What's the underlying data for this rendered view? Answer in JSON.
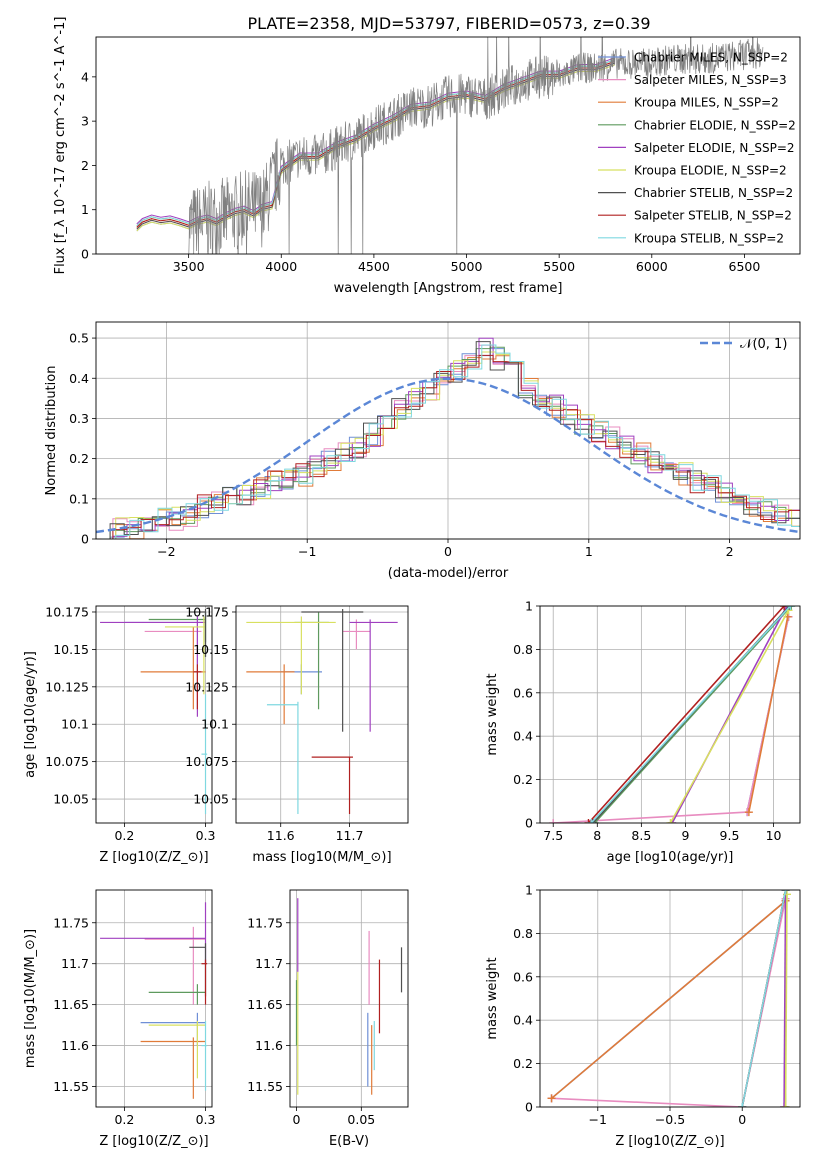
{
  "figure": {
    "title": "PLATE=2358, MJD=53797, FIBERID=0573, z=0.39"
  },
  "colors": {
    "Chabrier MILES": "#6f8fd6",
    "Salpeter MILES": "#e88cc0",
    "Kroupa MILES": "#e07b39",
    "Chabrier ELODIE": "#5e9a5e",
    "Salpeter ELODIE": "#a040c0",
    "Kroupa ELODIE": "#d8e060",
    "Chabrier STELIB": "#505050",
    "Salpeter STELIB": "#b02020",
    "Kroupa STELIB": "#7fd8e0"
  },
  "chart_data": [
    {
      "id": "spectrum",
      "type": "line",
      "xlabel": "wavelength [Angstrom, rest frame]",
      "ylabel": "Flux [f_λ 10^-17 erg cm^-2 s^-1 A^-1]",
      "xlim": [
        3000,
        6800
      ],
      "ylim": [
        0,
        4.9
      ],
      "xticks": [
        3500,
        4000,
        4500,
        5000,
        5500,
        6000,
        6500
      ],
      "yticks": [
        0,
        1,
        2,
        3,
        4
      ],
      "legend_position": "top-right",
      "legend": [
        "Chabrier MILES, N_SSP=2",
        "Salpeter MILES, N_SSP=3",
        "Kroupa MILES, N_SSP=2",
        "Chabrier ELODIE, N_SSP=2",
        "Salpeter ELODIE, N_SSP=2",
        "Kroupa ELODIE, N_SSP=2",
        "Chabrier STELIB, N_SSP=2",
        "Salpeter STELIB, N_SSP=2",
        "Kroupa STELIB, N_SSP=2"
      ],
      "data_series": {
        "name": "data",
        "color": "#808080",
        "x": [
          3500,
          3600,
          3700,
          3800,
          3900,
          4000,
          4100,
          4200,
          4300,
          4400,
          4500,
          4600,
          4700,
          4800,
          4900,
          5000,
          5100,
          5200,
          5300,
          5400,
          5500,
          5600,
          5700,
          5800,
          5900,
          6000,
          6100,
          6200,
          6300,
          6400,
          6500,
          6600
        ],
        "y": [
          0.65,
          0.75,
          0.85,
          1.0,
          1.05,
          2.0,
          2.2,
          2.2,
          2.4,
          2.6,
          2.85,
          3.05,
          3.3,
          3.35,
          3.55,
          3.6,
          3.5,
          3.7,
          3.9,
          4.0,
          4.0,
          4.2,
          4.2,
          4.3,
          4.3,
          4.3,
          4.4,
          4.4,
          4.4,
          4.45,
          4.5,
          4.55
        ]
      },
      "model_series": {
        "x": [
          3220,
          3250,
          3300,
          3350,
          3400,
          3450,
          3500,
          3550,
          3600,
          3650,
          3700,
          3750,
          3800,
          3850,
          3900,
          3950,
          4000,
          4050,
          4100,
          4200,
          4300,
          4400,
          4500,
          4600,
          4700,
          4800,
          4900,
          5000,
          5100,
          5200,
          5300,
          5400,
          5500,
          5600,
          5700,
          5800
        ],
        "y": [
          0.6,
          0.72,
          0.8,
          0.75,
          0.78,
          0.72,
          0.65,
          0.75,
          0.8,
          0.72,
          0.85,
          0.95,
          1.0,
          0.9,
          1.05,
          1.1,
          1.9,
          2.05,
          2.2,
          2.2,
          2.45,
          2.6,
          2.85,
          3.05,
          3.3,
          3.35,
          3.55,
          3.6,
          3.5,
          3.75,
          3.9,
          4.05,
          4.05,
          4.2,
          4.2,
          4.35
        ]
      }
    },
    {
      "id": "residuals",
      "type": "line",
      "xlabel": "(data-model)/error",
      "ylabel": "Normed distribution",
      "xlim": [
        -2.5,
        2.5
      ],
      "ylim": [
        0,
        0.54
      ],
      "xticks": [
        -2,
        -1,
        0,
        1,
        2
      ],
      "yticks": [
        0.0,
        0.1,
        0.2,
        0.3,
        0.4,
        0.5
      ],
      "legend": [
        "𝒩(0, 1)"
      ],
      "legend_position": "top-right",
      "gaussian": {
        "mean": 0,
        "sigma": 1,
        "color": "#5b87d6"
      },
      "hist_x": [
        -2.5,
        -2.4,
        -2.3,
        -2.2,
        -2.1,
        -2.0,
        -1.9,
        -1.8,
        -1.7,
        -1.6,
        -1.5,
        -1.4,
        -1.3,
        -1.2,
        -1.1,
        -1.0,
        -0.9,
        -0.8,
        -0.7,
        -0.6,
        -0.5,
        -0.4,
        -0.3,
        -0.2,
        -0.1,
        0.0,
        0.1,
        0.2,
        0.3,
        0.4,
        0.5,
        0.6,
        0.7,
        0.8,
        0.9,
        1.0,
        1.1,
        1.2,
        1.3,
        1.4,
        1.5,
        1.6,
        1.7,
        1.8,
        1.9,
        2.0,
        2.1,
        2.2,
        2.3,
        2.4
      ],
      "hist_y": [
        0.02,
        0.03,
        0.03,
        0.04,
        0.05,
        0.05,
        0.06,
        0.08,
        0.09,
        0.1,
        0.11,
        0.13,
        0.14,
        0.15,
        0.16,
        0.18,
        0.2,
        0.21,
        0.23,
        0.26,
        0.28,
        0.32,
        0.35,
        0.37,
        0.4,
        0.42,
        0.44,
        0.47,
        0.45,
        0.42,
        0.38,
        0.35,
        0.33,
        0.31,
        0.29,
        0.27,
        0.25,
        0.23,
        0.21,
        0.19,
        0.18,
        0.16,
        0.14,
        0.13,
        0.11,
        0.1,
        0.08,
        0.07,
        0.06,
        0.05
      ]
    },
    {
      "id": "age-vs-Z",
      "type": "scatter",
      "xlabel": "Z [log10(Z/Z_⊙)]",
      "ylabel": "age  [log10(age/yr)]",
      "xlim": [
        0.165,
        0.308
      ],
      "ylim": [
        10.034,
        10.179
      ],
      "xticks": [
        0.2,
        0.3
      ],
      "yticks": [
        10.05,
        10.075,
        10.1,
        10.125,
        10.15,
        10.175
      ],
      "points": [
        {
          "series": "Chabrier MILES",
          "x": 0.3,
          "y": 10.168,
          "xerr": [
            0.2,
            0.3
          ],
          "yerr": [
            10.145,
            10.175
          ]
        },
        {
          "series": "Salpeter MILES",
          "x": 0.29,
          "y": 10.162,
          "xerr": [
            0.225,
            0.295
          ],
          "yerr": [
            10.14,
            10.17
          ]
        },
        {
          "series": "Kroupa MILES",
          "x": 0.285,
          "y": 10.135,
          "xerr": [
            0.22,
            0.3
          ],
          "yerr": [
            10.11,
            10.165
          ]
        },
        {
          "series": "Chabrier ELODIE",
          "x": 0.3,
          "y": 10.17,
          "xerr": [
            0.23,
            0.3
          ],
          "yerr": [
            10.155,
            10.175
          ]
        },
        {
          "series": "Salpeter ELODIE",
          "x": 0.29,
          "y": 10.168,
          "xerr": [
            0.17,
            0.3
          ],
          "yerr": [
            10.105,
            10.172
          ]
        },
        {
          "series": "Kroupa ELODIE",
          "x": 0.298,
          "y": 10.165,
          "xerr": [
            0.25,
            0.3
          ],
          "yerr": [
            10.12,
            10.172
          ]
        },
        {
          "series": "Chabrier STELIB",
          "x": 0.3,
          "y": 10.175,
          "xerr": [
            0.28,
            0.3
          ],
          "yerr": [
            10.145,
            10.177
          ]
        },
        {
          "series": "Salpeter STELIB",
          "x": 0.29,
          "y": 10.135,
          "xerr": [
            0.285,
            0.295
          ],
          "yerr": [
            10.11,
            10.14
          ]
        },
        {
          "series": "Kroupa STELIB",
          "x": 0.3,
          "y": 10.08,
          "xerr": [
            0.295,
            0.302
          ],
          "yerr": [
            10.04,
            10.12
          ]
        }
      ]
    },
    {
      "id": "age-vs-mass",
      "type": "scatter",
      "xlabel": "mass [log10(M/M_⊙)]",
      "ylabel": "",
      "xlim": [
        11.535,
        11.785
      ],
      "ylim": [
        10.034,
        10.179
      ],
      "xticks": [
        11.6,
        11.7
      ],
      "yticks": [
        10.05,
        10.075,
        10.1,
        10.125,
        10.15,
        10.175
      ],
      "points": [
        {
          "series": "Chabrier MILES",
          "x": 11.63,
          "y": 10.135,
          "xerr": [
            11.6,
            11.66
          ],
          "yerr": [
            10.12,
            10.14
          ]
        },
        {
          "series": "Salpeter MILES",
          "x": 11.71,
          "y": 10.162,
          "xerr": [
            11.69,
            11.73
          ],
          "yerr": [
            10.15,
            10.17
          ]
        },
        {
          "series": "Kroupa MILES",
          "x": 11.605,
          "y": 10.135,
          "xerr": [
            11.55,
            11.62
          ],
          "yerr": [
            10.1,
            10.14
          ]
        },
        {
          "series": "Chabrier ELODIE",
          "x": 11.655,
          "y": 10.168,
          "xerr": [
            11.62,
            11.67
          ],
          "yerr": [
            10.11,
            10.175
          ]
        },
        {
          "series": "Salpeter ELODIE",
          "x": 11.73,
          "y": 10.168,
          "xerr": [
            11.7,
            11.77
          ],
          "yerr": [
            10.095,
            10.17
          ]
        },
        {
          "series": "Kroupa ELODIE",
          "x": 11.63,
          "y": 10.168,
          "xerr": [
            11.55,
            11.68
          ],
          "yerr": [
            10.12,
            10.172
          ]
        },
        {
          "series": "Chabrier STELIB",
          "x": 11.69,
          "y": 10.175,
          "xerr": [
            11.63,
            11.72
          ],
          "yerr": [
            10.095,
            10.177
          ]
        },
        {
          "series": "Salpeter STELIB",
          "x": 11.7,
          "y": 10.078,
          "xerr": [
            11.645,
            11.705
          ],
          "yerr": [
            10.04,
            10.078
          ]
        },
        {
          "series": "Kroupa STELIB",
          "x": 11.625,
          "y": 10.113,
          "xerr": [
            11.58,
            11.625
          ],
          "yerr": [
            10.04,
            10.115
          ]
        }
      ]
    },
    {
      "id": "massweight-vs-age",
      "type": "line",
      "xlabel": "age  [log10(age/yr)]",
      "ylabel": "mass weight",
      "xlim": [
        7.35,
        10.3
      ],
      "ylim": [
        0,
        1
      ],
      "xticks": [
        7.5,
        8.0,
        8.5,
        9.0,
        9.5,
        10.0
      ],
      "yticks": [
        0.0,
        0.2,
        0.4,
        0.6,
        0.8,
        1.0
      ],
      "series": [
        {
          "series": "Chabrier MILES",
          "x": [
            9.7,
            10.17
          ],
          "y": [
            0.05,
            0.95
          ]
        },
        {
          "series": "Salpeter MILES",
          "x": [
            7.5,
            9.7,
            10.17
          ],
          "y": [
            0.0,
            0.05,
            0.95
          ]
        },
        {
          "series": "Kroupa MILES",
          "x": [
            9.72,
            10.16
          ],
          "y": [
            0.05,
            0.95
          ]
        },
        {
          "series": "Chabrier ELODIE",
          "x": [
            7.97,
            10.2
          ],
          "y": [
            0.0,
            1.0
          ]
        },
        {
          "series": "Salpeter ELODIE",
          "x": [
            8.85,
            10.15
          ],
          "y": [
            0.0,
            1.0
          ]
        },
        {
          "series": "Kroupa ELODIE",
          "x": [
            8.83,
            10.17
          ],
          "y": [
            0.0,
            0.98
          ]
        },
        {
          "series": "Chabrier STELIB",
          "x": [
            7.95,
            10.18
          ],
          "y": [
            0.0,
            1.0
          ]
        },
        {
          "series": "Salpeter STELIB",
          "x": [
            7.9,
            10.12
          ],
          "y": [
            0.0,
            1.0
          ]
        },
        {
          "series": "Kroupa STELIB",
          "x": [
            7.93,
            10.19
          ],
          "y": [
            0.0,
            1.0
          ]
        }
      ]
    },
    {
      "id": "mass-vs-Z",
      "type": "scatter",
      "xlabel": "Z [log10(Z/Z_⊙)]",
      "ylabel": "mass [log10(M/M_⊙)]",
      "xlim": [
        0.165,
        0.308
      ],
      "ylim": [
        11.525,
        11.79
      ],
      "xticks": [
        0.2,
        0.3
      ],
      "yticks": [
        11.55,
        11.6,
        11.65,
        11.7,
        11.75
      ],
      "points": [
        {
          "series": "Chabrier MILES",
          "x": 0.29,
          "y": 11.628,
          "xerr": [
            0.22,
            0.3
          ],
          "yerr": [
            11.6,
            11.64
          ]
        },
        {
          "series": "Salpeter MILES",
          "x": 0.285,
          "y": 11.73,
          "xerr": [
            0.225,
            0.3
          ],
          "yerr": [
            11.65,
            11.745
          ]
        },
        {
          "series": "Kroupa MILES",
          "x": 0.285,
          "y": 11.605,
          "xerr": [
            0.22,
            0.3
          ],
          "yerr": [
            11.535,
            11.61
          ]
        },
        {
          "series": "Chabrier ELODIE",
          "x": 0.29,
          "y": 11.665,
          "xerr": [
            0.23,
            0.3
          ],
          "yerr": [
            11.65,
            11.675
          ]
        },
        {
          "series": "Salpeter ELODIE",
          "x": 0.3,
          "y": 11.731,
          "xerr": [
            0.17,
            0.3
          ],
          "yerr": [
            11.7,
            11.775
          ]
        },
        {
          "series": "Kroupa ELODIE",
          "x": 0.29,
          "y": 11.625,
          "xerr": [
            0.23,
            0.3
          ],
          "yerr": [
            11.56,
            11.63
          ]
        },
        {
          "series": "Chabrier STELIB",
          "x": 0.3,
          "y": 11.72,
          "xerr": [
            0.28,
            0.3
          ],
          "yerr": [
            11.66,
            11.725
          ]
        },
        {
          "series": "Salpeter STELIB",
          "x": 0.3,
          "y": 11.7,
          "xerr": [
            0.295,
            0.302
          ],
          "yerr": [
            11.65,
            11.705
          ]
        },
        {
          "series": "Kroupa STELIB",
          "x": 0.3,
          "y": 11.6,
          "xerr": [
            0.295,
            0.302
          ],
          "yerr": [
            11.545,
            11.63
          ]
        }
      ]
    },
    {
      "id": "mass-vs-EBV",
      "type": "scatter",
      "xlabel": "E(B-V)",
      "ylabel": "",
      "xlim": [
        -0.005,
        0.086
      ],
      "ylim": [
        11.525,
        11.79
      ],
      "xticks": [
        0.0,
        0.05
      ],
      "yticks": [
        11.55,
        11.6,
        11.65,
        11.7,
        11.75
      ],
      "points": [
        {
          "series": "Chabrier MILES",
          "x": 0.055,
          "y": 11.6,
          "yerr": [
            11.55,
            11.64
          ]
        },
        {
          "series": "Salpeter MILES",
          "x": 0.056,
          "y": 11.69,
          "yerr": [
            11.65,
            11.74
          ]
        },
        {
          "series": "Kroupa MILES",
          "x": 0.058,
          "y": 11.6,
          "yerr": [
            11.54,
            11.625
          ]
        },
        {
          "series": "Chabrier ELODIE",
          "x": 0.0,
          "y": 11.65,
          "yerr": [
            11.6,
            11.68
          ]
        },
        {
          "series": "Salpeter ELODIE",
          "x": 0.001,
          "y": 11.73,
          "yerr": [
            11.69,
            11.78
          ]
        },
        {
          "series": "Kroupa ELODIE",
          "x": 0.001,
          "y": 11.62,
          "yerr": [
            11.54,
            11.69
          ]
        },
        {
          "series": "Chabrier STELIB",
          "x": 0.081,
          "y": 11.69,
          "yerr": [
            11.665,
            11.72
          ]
        },
        {
          "series": "Salpeter STELIB",
          "x": 0.064,
          "y": 11.66,
          "yerr": [
            11.615,
            11.705
          ]
        },
        {
          "series": "Kroupa STELIB",
          "x": 0.06,
          "y": 11.6,
          "yerr": [
            11.57,
            11.63
          ]
        }
      ]
    },
    {
      "id": "massweight-vs-Z",
      "type": "line",
      "xlabel": "Z [log10(Z/Z_⊙)]",
      "ylabel": "mass weight",
      "xlim": [
        -1.4,
        0.4
      ],
      "ylim": [
        0,
        1
      ],
      "xticks": [
        -1.0,
        -0.5,
        0.0
      ],
      "yticks": [
        0.0,
        0.2,
        0.4,
        0.6,
        0.8,
        1.0
      ],
      "series": [
        {
          "series": "Chabrier MILES",
          "x": [
            -1.32,
            0.3
          ],
          "y": [
            0.04,
            0.95
          ]
        },
        {
          "series": "Salpeter MILES",
          "x": [
            -1.32,
            0.0,
            0.3
          ],
          "y": [
            0.04,
            0.0,
            0.96
          ]
        },
        {
          "series": "Kroupa MILES",
          "x": [
            -1.32,
            0.3
          ],
          "y": [
            0.04,
            0.95
          ]
        },
        {
          "series": "Chabrier ELODIE",
          "x": [
            0.3,
            0.3
          ],
          "y": [
            0.0,
            1.0
          ]
        },
        {
          "series": "Salpeter ELODIE",
          "x": [
            0.29,
            0.3
          ],
          "y": [
            0.0,
            1.0
          ]
        },
        {
          "series": "Kroupa ELODIE",
          "x": [
            0.3,
            0.31
          ],
          "y": [
            0.0,
            0.98
          ]
        },
        {
          "series": "Chabrier STELIB",
          "x": [
            0.0,
            0.3
          ],
          "y": [
            0.0,
            1.0
          ]
        },
        {
          "series": "Salpeter STELIB",
          "x": [
            0.0,
            0.3
          ],
          "y": [
            0.0,
            1.0
          ]
        },
        {
          "series": "Kroupa STELIB",
          "x": [
            0.0,
            0.3
          ],
          "y": [
            0.0,
            1.0
          ]
        }
      ]
    }
  ]
}
